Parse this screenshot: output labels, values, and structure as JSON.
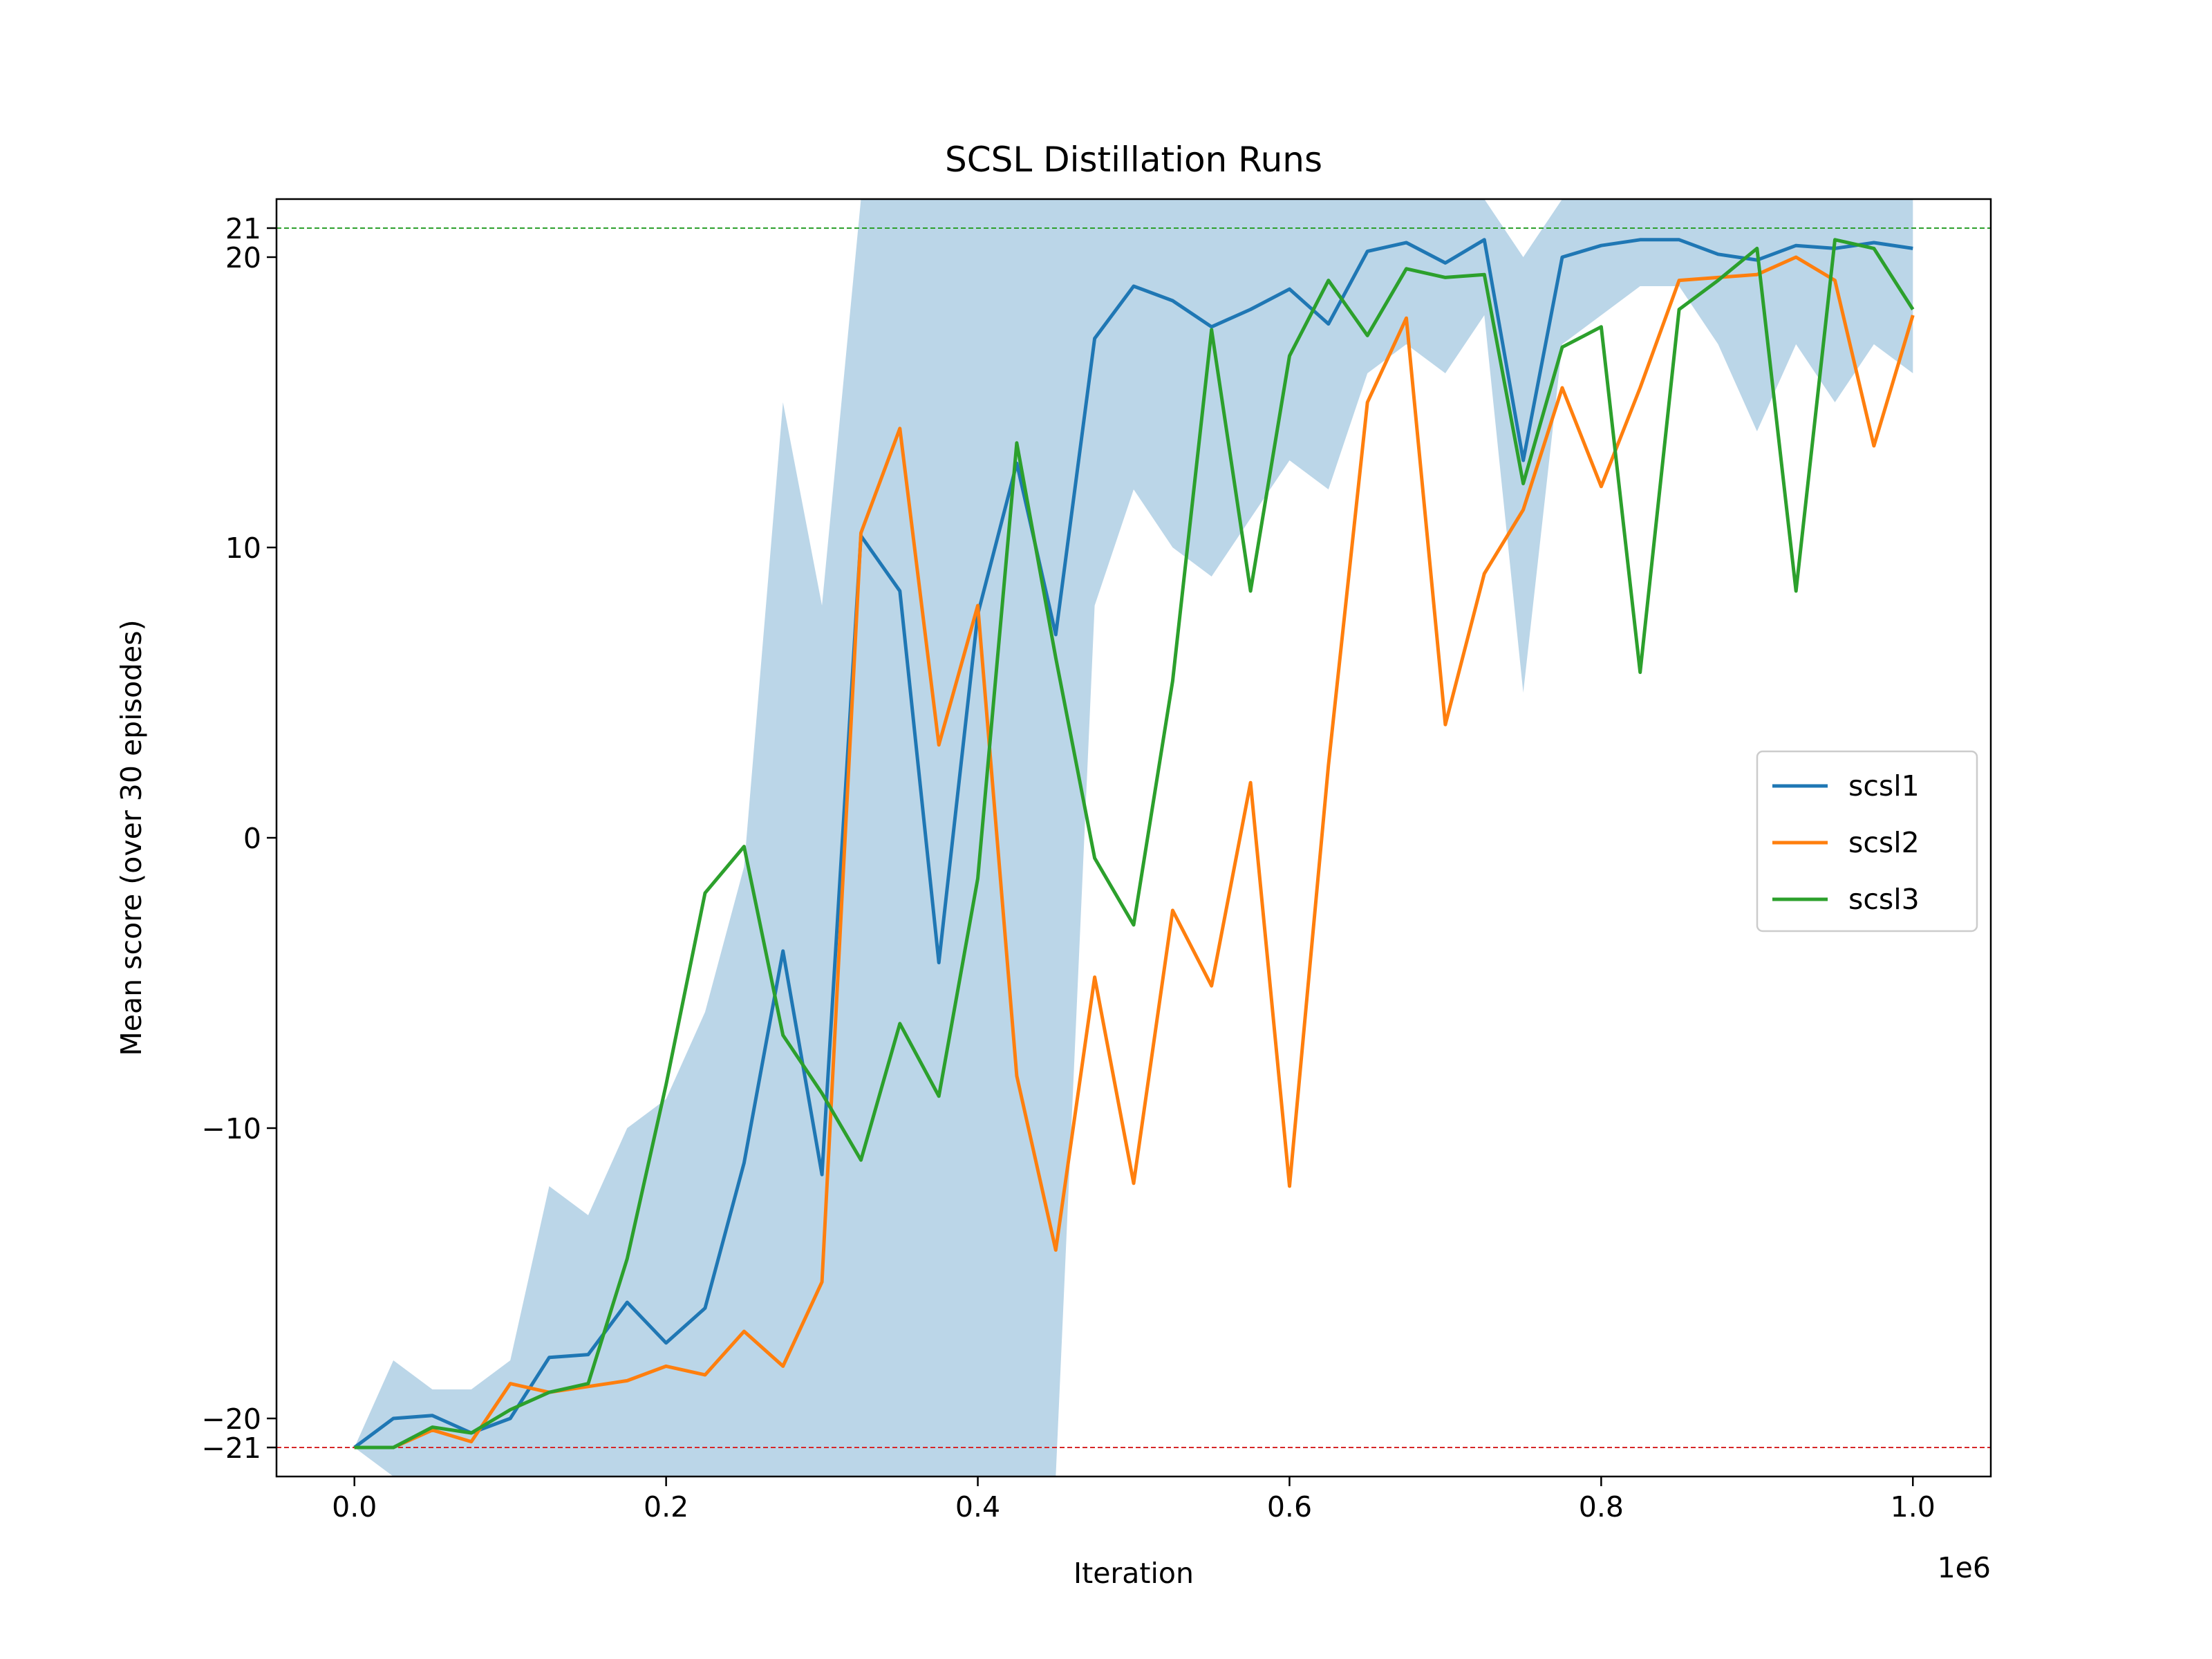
{
  "chart_data": {
    "type": "line",
    "title": "SCSL Distillation Runs",
    "xlabel": "Iteration",
    "ylabel": "Mean score (over 30 episodes)",
    "x_multiplier_label": "1e6",
    "xlim": [
      -50000,
      1050000
    ],
    "ylim": [
      -22,
      22
    ],
    "x_ticks": [
      0,
      200000,
      400000,
      600000,
      800000,
      1000000
    ],
    "x_tick_labels": [
      "0.0",
      "0.2",
      "0.4",
      "0.6",
      "0.8",
      "1.0"
    ],
    "y_ticks": [
      -21,
      -20,
      -10,
      0,
      10,
      20,
      21
    ],
    "y_tick_labels": [
      "−21",
      "−20",
      "−10",
      "0",
      "10",
      "20",
      "21"
    ],
    "x": [
      0,
      25000,
      50000,
      75000,
      100000,
      125000,
      150000,
      175000,
      200000,
      225000,
      250000,
      275000,
      300000,
      325000,
      350000,
      375000,
      400000,
      425000,
      450000,
      475000,
      500000,
      525000,
      550000,
      575000,
      600000,
      625000,
      650000,
      675000,
      700000,
      725000,
      750000,
      775000,
      800000,
      825000,
      850000,
      875000,
      900000,
      925000,
      950000,
      975000,
      1000000
    ],
    "reference_lines": [
      {
        "y": 21,
        "color": "#2ca02c",
        "style": "dashed"
      },
      {
        "y": -21,
        "color": "#d62728",
        "style": "dashed"
      }
    ],
    "legend_position": "center-right",
    "grid": false,
    "series": [
      {
        "name": "scsl1",
        "color": "#1f77b4",
        "values": [
          -21,
          -20,
          -19.9,
          -20.5,
          -20,
          -17.9,
          -17.8,
          -16,
          -17.4,
          -16.2,
          -11.2,
          -3.9,
          -11.6,
          10.4,
          8.5,
          -4.3,
          7.7,
          12.9,
          7,
          17.2,
          19,
          18.5,
          17.6,
          18.2,
          18.9,
          17.7,
          20.2,
          20.5,
          19.8,
          20.6,
          13,
          20,
          20.4,
          20.6,
          20.6,
          20.1,
          19.9,
          20.4,
          20.3,
          20.5,
          20.3
        ],
        "band_lower": [
          -21,
          -22,
          -22,
          -22,
          -22,
          -22,
          -22,
          -22,
          -22,
          -22,
          -22,
          -22,
          -22,
          -22,
          -22,
          -22,
          -22,
          -22,
          -22,
          8,
          12,
          10,
          9,
          11,
          13,
          12,
          16,
          17,
          16,
          18,
          5,
          17,
          18,
          19,
          19,
          17,
          14,
          17,
          15,
          17,
          16
        ],
        "band_upper": [
          -21,
          -18,
          -19,
          -19,
          -18,
          -12,
          -13,
          -10,
          -9,
          -6,
          -1,
          15,
          8,
          22,
          22,
          22,
          22,
          22,
          22,
          22,
          22,
          22,
          22,
          22,
          22,
          22,
          22,
          22,
          22,
          22,
          20,
          22,
          22,
          22,
          22,
          22,
          22,
          22,
          22,
          22,
          22
        ]
      },
      {
        "name": "scsl2",
        "color": "#ff7f0e",
        "values": [
          -21,
          -21,
          -20.4,
          -20.8,
          -18.8,
          -19.1,
          -18.9,
          -18.7,
          -18.2,
          -18.5,
          -17,
          -18.2,
          -15.3,
          10.5,
          14.1,
          3.2,
          8,
          -8.2,
          -14.2,
          -4.8,
          -11.9,
          -2.5,
          -5.1,
          1.9,
          -12,
          2.5,
          15,
          17.9,
          3.9,
          9.1,
          11.3,
          15.5,
          12.1,
          15.5,
          19.2,
          19.3,
          19.4,
          20,
          19.2,
          13.5,
          18
        ]
      },
      {
        "name": "scsl3",
        "color": "#2ca02c",
        "values": [
          -21,
          -21,
          -20.3,
          -20.5,
          -19.7,
          -19.1,
          -18.8,
          -14.5,
          -8.5,
          -1.9,
          -0.3,
          -6.8,
          -8.8,
          -11.1,
          -6.4,
          -8.9,
          -1.4,
          13.6,
          6.2,
          -0.7,
          -3,
          5.4,
          17.5,
          8.5,
          16.6,
          19.2,
          17.3,
          19.6,
          19.3,
          19.4,
          12.2,
          16.9,
          17.6,
          5.7,
          18.2,
          19.2,
          20.3,
          8.5,
          20.6,
          20.3,
          18.2
        ]
      }
    ]
  }
}
